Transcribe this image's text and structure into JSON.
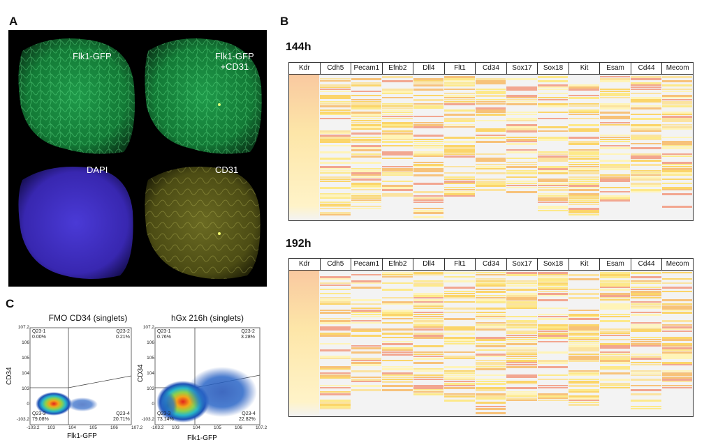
{
  "panels": {
    "a": "A",
    "b": "B",
    "c": "C"
  },
  "panel_a": {
    "labels": [
      "Flk1-GFP",
      "Flk1-GFP\n+CD31",
      "DAPI",
      "CD31"
    ]
  },
  "panel_b": {
    "heatmaps": [
      {
        "title": "144h"
      },
      {
        "title": "192h"
      }
    ],
    "columns": [
      "Kdr",
      "Cdh5",
      "Pecam1",
      "Efnb2",
      "Dll4",
      "Flt1",
      "Cd34",
      "Sox17",
      "Sox18",
      "Kit",
      "Esam",
      "Cd44",
      "Mecom"
    ]
  },
  "panel_c": {
    "plots": [
      {
        "title": "FMO CD34 (singlets)",
        "xlabel": "Flk1-GFP",
        "ylabel": "CD34",
        "quadrants": {
          "q1": "Q23-1\n0.00%",
          "q2": "Q23-2\n0.21%",
          "q3": "Q23-3\n79.08%",
          "q4": "Q23-4\n20.71%"
        }
      },
      {
        "title": "hGx 216h (singlets)",
        "xlabel": "Flk1-GFP",
        "ylabel": "CD34",
        "quadrants": {
          "q1": "Q23-1\n0.76%",
          "q2": "Q23-2\n3.28%",
          "q3": "Q23-3\n73.14%",
          "q4": "Q23-4\n22.82%"
        }
      }
    ],
    "xticks": [
      "-10^3.2",
      "10^3",
      "10^4",
      "10^5",
      "10^6",
      "10^7.2"
    ],
    "yticks": [
      "-10^3.2",
      "0",
      "10^3",
      "10^4",
      "10^5",
      "10^6",
      "10^7.2"
    ]
  }
}
